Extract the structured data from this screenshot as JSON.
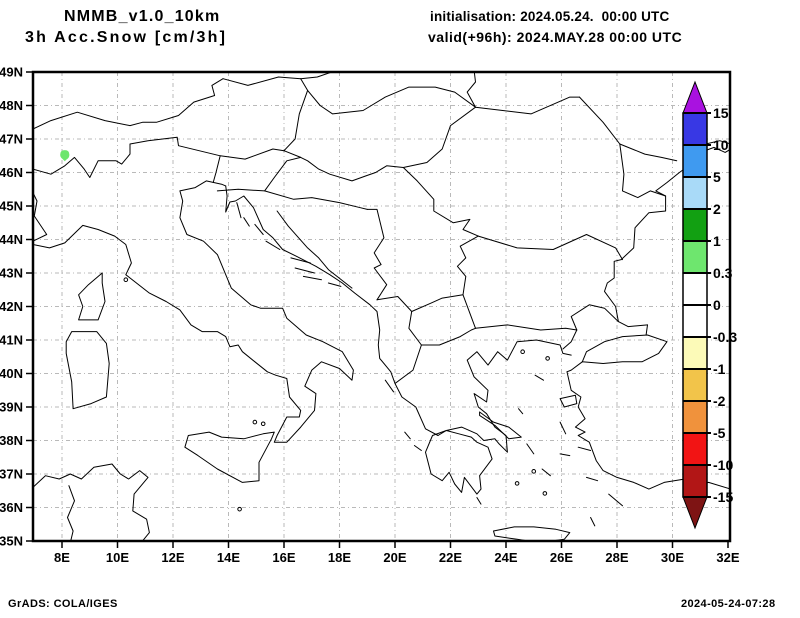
{
  "header": {
    "model": "NMMB_v1.0_10km",
    "product": "3h Acc.Snow [cm/3h]",
    "init_line": "initialisation: 2024.05.24.  00:00 UTC",
    "valid_line": "valid(+96h): 2024.MAY.28 00:00 UTC"
  },
  "footer": {
    "left": "GrADS: COLA/IGES",
    "right": "2024-05-24-07:28"
  },
  "map": {
    "x_ticks": [
      "8E",
      "10E",
      "12E",
      "14E",
      "16E",
      "18E",
      "20E",
      "22E",
      "24E",
      "26E",
      "28E",
      "30E",
      "32E"
    ],
    "y_ticks": [
      "49N",
      "48N",
      "47N",
      "46N",
      "45N",
      "44N",
      "43N",
      "42N",
      "41N",
      "40N",
      "39N",
      "38N",
      "37N",
      "36N",
      "35N"
    ],
    "grid_color": "#b9b9b9",
    "coast_color": "#000000"
  },
  "colorbar": {
    "tick_labels": [
      "15",
      "10",
      "5",
      "2",
      "1",
      "0.3",
      "0",
      "-0.3",
      "-1",
      "-2",
      "-5",
      "-10",
      "-15"
    ],
    "segment_colors_top_to_bottom": [
      "#a912e0",
      "#3838e4",
      "#3f9af0",
      "#a9daf8",
      "#12a012",
      "#6ee66e",
      "#ffffff",
      "#ffffff",
      "#fcfab8",
      "#f2c44a",
      "#f0923c",
      "#f21414",
      "#b21616",
      "#7e1414"
    ]
  },
  "chart_data": {
    "type": "heatmap",
    "variant": "filled-contour weather map (GrADS shaded plot over coastline/border map)",
    "title": "NMMB_v1.0_10km — 3h Acc.Snow [cm/3h]",
    "initialisation": "2024.05.24. 00:00 UTC",
    "valid": "+96h: 2024.MAY.28 00:00 UTC",
    "x_axis": {
      "tick_labels": [
        "8E",
        "10E",
        "12E",
        "14E",
        "16E",
        "18E",
        "20E",
        "22E",
        "24E",
        "26E",
        "28E",
        "30E",
        "32E"
      ],
      "range_deg_east": [
        7,
        32
      ]
    },
    "y_axis": {
      "tick_labels": [
        "49N",
        "48N",
        "47N",
        "46N",
        "45N",
        "44N",
        "43N",
        "42N",
        "41N",
        "40N",
        "39N",
        "38N",
        "37N",
        "36N",
        "35N"
      ],
      "range_deg_north": [
        35,
        49
      ]
    },
    "grid": "dash-dot gray graticule, 2 deg lon by 1 deg lat",
    "legend_position": "vertical colorbar at right, arrows on both ends",
    "contour_levels_cm": [
      15,
      10,
      5,
      2,
      1,
      0.3,
      0,
      -0.3,
      -1,
      -2,
      -5,
      -10,
      -15
    ],
    "level_colors_top_to_bottom": [
      "#a912e0",
      "#3838e4",
      "#3f9af0",
      "#a9daf8",
      "#12a012",
      "#6ee66e",
      "#ffffff",
      "#ffffff",
      "#fcfab8",
      "#f2c44a",
      "#f0923c",
      "#f21414",
      "#b21616",
      "#7e1414"
    ],
    "data_points": [
      {
        "lon_e": 8.1,
        "lat_n": 46.5,
        "value_bin_cm_per_3h": "0.3 to 1",
        "color": "#6ee66e"
      }
    ],
    "field_note": "entire domain at 0 except one small light-green accumulation spot"
  }
}
